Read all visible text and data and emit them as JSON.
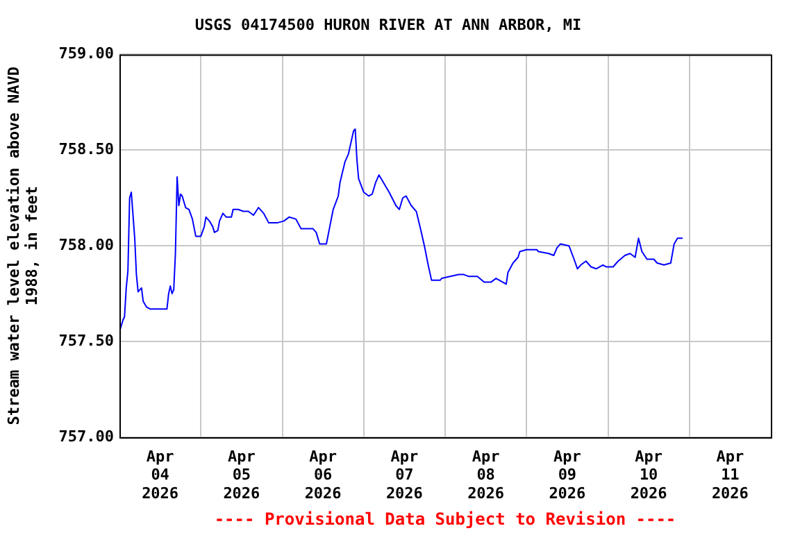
{
  "chart_data": {
    "type": "line",
    "title": "USGS 04174500 HURON RIVER AT ANN ARBOR, MI",
    "ylabel": "Stream water level elevation above NAVD 1988, in feet",
    "xlim": [
      "2026-04-04T00:00",
      "2026-04-12T00:00"
    ],
    "xticks": [
      {
        "value": "2026-04-04T12:00",
        "label": "Apr\n04\n2026"
      },
      {
        "value": "2026-04-05T00:00",
        "label": null
      },
      {
        "value": "2026-04-05T12:00",
        "label": "Apr\n05\n2026"
      },
      {
        "value": "2026-04-06T00:00",
        "label": null
      },
      {
        "value": "2026-04-06T12:00",
        "label": "Apr\n06\n2026"
      },
      {
        "value": "2026-04-07T00:00",
        "label": null
      },
      {
        "value": "2026-04-07T12:00",
        "label": "Apr\n07\n2026"
      },
      {
        "value": "2026-04-08T00:00",
        "label": null
      },
      {
        "value": "2026-04-08T12:00",
        "label": "Apr\n08\n2026"
      },
      {
        "value": "2026-04-09T00:00",
        "label": null
      },
      {
        "value": "2026-04-09T12:00",
        "label": "Apr\n09\n2026"
      },
      {
        "value": "2026-04-10T00:00",
        "label": null
      },
      {
        "value": "2026-04-10T12:00",
        "label": "Apr\n10\n2026"
      },
      {
        "value": "2026-04-11T00:00",
        "label": null
      },
      {
        "value": "2026-04-11T12:00",
        "label": "Apr\n11\n2026"
      }
    ],
    "ylim": [
      757,
      759
    ],
    "yticks": [
      {
        "value": 757,
        "label": "757.00"
      },
      {
        "value": 757.5,
        "label": "757.50"
      },
      {
        "value": 758,
        "label": "758.00"
      },
      {
        "value": 758.5,
        "label": "758.50"
      },
      {
        "value": 759,
        "label": "759.00"
      }
    ],
    "grid": true,
    "legend": false,
    "marker": "none",
    "line_style": "solid",
    "annotations": [
      "---- Provisional Data Subject to Revision ----"
    ],
    "series": [
      {
        "color": "#0000ff",
        "x": [
          "2026-04-04T00:00",
          "2026-04-04T01:00",
          "2026-04-04T01:30",
          "2026-04-04T02:00",
          "2026-04-04T02:30",
          "2026-04-04T03:00",
          "2026-04-04T03:30",
          "2026-04-04T04:00",
          "2026-04-04T04:30",
          "2026-04-04T05:00",
          "2026-04-04T05:30",
          "2026-04-04T06:30",
          "2026-04-04T07:00",
          "2026-04-04T08:00",
          "2026-04-04T09:00",
          "2026-04-04T14:00",
          "2026-04-04T14:30",
          "2026-04-04T15:00",
          "2026-04-04T15:30",
          "2026-04-04T16:00",
          "2026-04-04T16:30",
          "2026-04-04T17:00",
          "2026-04-04T17:30",
          "2026-04-04T18:00",
          "2026-04-04T18:30",
          "2026-04-04T19:30",
          "2026-04-04T20:30",
          "2026-04-04T21:30",
          "2026-04-04T22:30",
          "2026-04-05T00:00",
          "2026-04-05T01:00",
          "2026-04-05T01:30",
          "2026-04-05T02:30",
          "2026-04-05T03:30",
          "2026-04-05T04:00",
          "2026-04-05T05:00",
          "2026-04-05T05:30",
          "2026-04-05T06:30",
          "2026-04-05T07:30",
          "2026-04-05T09:00",
          "2026-04-05T09:30",
          "2026-04-05T11:00",
          "2026-04-05T12:30",
          "2026-04-05T14:00",
          "2026-04-05T15:30",
          "2026-04-05T17:00",
          "2026-04-05T18:30",
          "2026-04-05T20:00",
          "2026-04-05T22:30",
          "2026-04-06T00:30",
          "2026-04-06T02:00",
          "2026-04-06T04:00",
          "2026-04-06T05:30",
          "2026-04-06T09:00",
          "2026-04-06T10:00",
          "2026-04-06T11:00",
          "2026-04-06T13:00",
          "2026-04-06T14:00",
          "2026-04-06T15:00",
          "2026-04-06T16:30",
          "2026-04-06T17:00",
          "2026-04-06T18:30",
          "2026-04-06T19:30",
          "2026-04-06T21:00",
          "2026-04-06T21:30",
          "2026-04-06T22:00",
          "2026-04-06T22:30",
          "2026-04-07T00:00",
          "2026-04-07T01:30",
          "2026-04-07T02:30",
          "2026-04-07T03:30",
          "2026-04-07T04:30",
          "2026-04-07T06:30",
          "2026-04-07T07:30",
          "2026-04-07T09:30",
          "2026-04-07T10:30",
          "2026-04-07T11:30",
          "2026-04-07T12:30",
          "2026-04-07T14:00",
          "2026-04-07T15:30",
          "2026-04-07T17:00",
          "2026-04-07T18:00",
          "2026-04-07T19:00",
          "2026-04-07T20:00",
          "2026-04-07T22:30",
          "2026-04-07T23:00",
          "2026-04-08T01:30",
          "2026-04-08T04:00",
          "2026-04-08T05:30",
          "2026-04-08T07:00",
          "2026-04-08T09:30",
          "2026-04-08T11:30",
          "2026-04-08T13:30",
          "2026-04-08T15:00",
          "2026-04-08T17:00",
          "2026-04-08T18:00",
          "2026-04-08T18:30",
          "2026-04-08T20:00",
          "2026-04-08T21:30",
          "2026-04-08T22:00",
          "2026-04-09T00:00",
          "2026-04-09T03:00",
          "2026-04-09T03:30",
          "2026-04-09T06:30",
          "2026-04-09T08:00",
          "2026-04-09T09:00",
          "2026-04-09T10:00",
          "2026-04-09T12:30",
          "2026-04-09T14:00",
          "2026-04-09T15:00",
          "2026-04-09T16:00",
          "2026-04-09T17:30",
          "2026-04-09T19:00",
          "2026-04-09T20:30",
          "2026-04-09T22:30",
          "2026-04-09T23:30",
          "2026-04-10T01:30",
          "2026-04-10T03:00",
          "2026-04-10T05:00",
          "2026-04-10T06:30",
          "2026-04-10T08:00",
          "2026-04-10T09:00",
          "2026-04-10T10:00",
          "2026-04-10T11:30",
          "2026-04-10T13:30",
          "2026-04-10T14:30",
          "2026-04-10T16:30",
          "2026-04-10T18:30",
          "2026-04-10T19:30",
          "2026-04-10T20:30",
          "2026-04-10T22:00"
        ],
        "values": [
          757.55,
          757.61,
          757.63,
          757.78,
          757.87,
          758.25,
          758.28,
          758.16,
          758.04,
          757.85,
          757.76,
          757.78,
          757.71,
          757.68,
          757.67,
          757.67,
          757.75,
          757.79,
          757.75,
          757.77,
          757.96,
          758.36,
          758.21,
          758.27,
          758.26,
          758.2,
          758.19,
          758.14,
          758.05,
          758.05,
          758.1,
          758.15,
          758.13,
          758.1,
          758.07,
          758.08,
          758.13,
          758.17,
          758.15,
          758.15,
          758.19,
          758.19,
          758.18,
          758.18,
          758.16,
          758.2,
          758.17,
          758.12,
          758.12,
          758.13,
          758.15,
          758.14,
          758.09,
          758.09,
          758.07,
          758.01,
          758.01,
          758.1,
          758.19,
          758.26,
          758.33,
          758.44,
          758.48,
          758.6,
          758.61,
          758.45,
          758.35,
          758.28,
          758.26,
          758.27,
          758.33,
          758.37,
          758.31,
          758.28,
          758.21,
          758.19,
          758.25,
          758.26,
          758.21,
          758.18,
          758.07,
          757.99,
          757.9,
          757.82,
          757.82,
          757.83,
          757.84,
          757.85,
          757.85,
          757.84,
          757.84,
          757.81,
          757.81,
          757.83,
          757.81,
          757.8,
          757.86,
          757.91,
          757.94,
          757.97,
          757.98,
          757.98,
          757.97,
          757.96,
          757.95,
          757.99,
          758.01,
          758,
          757.93,
          757.88,
          757.9,
          757.92,
          757.89,
          757.88,
          757.9,
          757.89,
          757.89,
          757.92,
          757.95,
          757.96,
          757.94,
          758.04,
          757.97,
          757.93,
          757.93,
          757.91,
          757.9,
          757.91,
          758.01,
          758.04,
          758.04
        ]
      }
    ]
  }
}
